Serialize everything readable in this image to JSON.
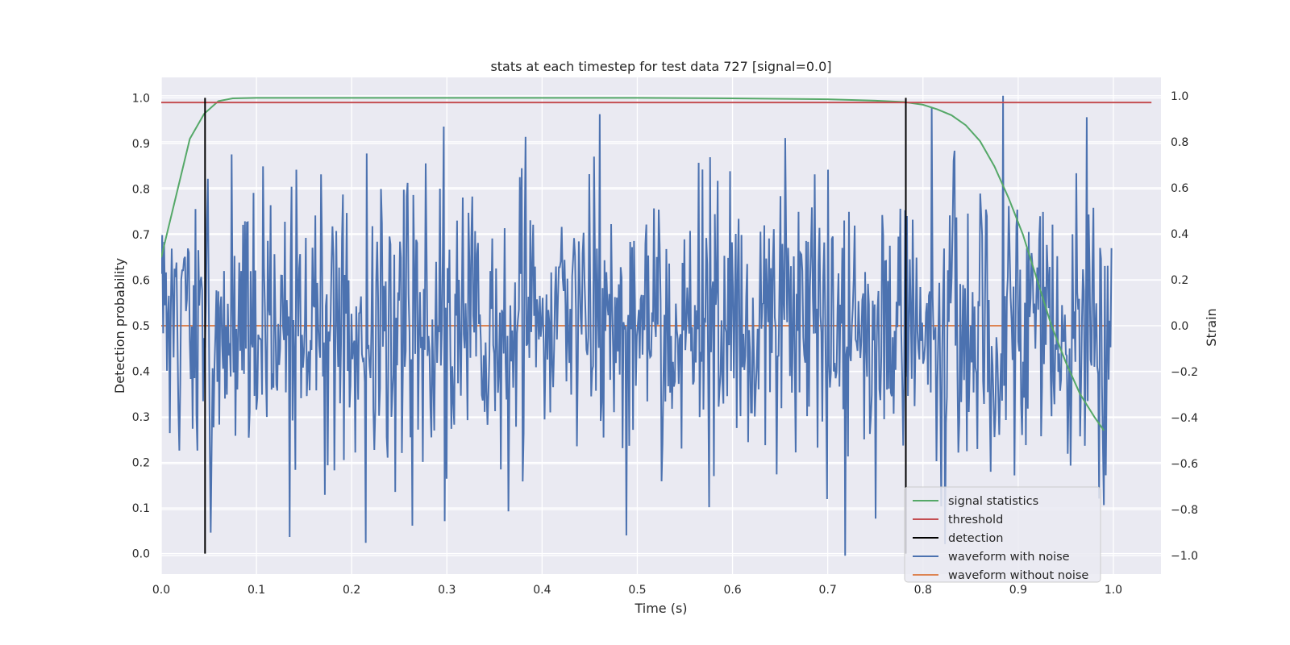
{
  "chart_data": {
    "type": "line",
    "title": "stats at each timestep for test data 727 [signal=0.0]",
    "xlabel": "Time (s)",
    "ylabel_left": "Detection probability",
    "ylabel_right": "Strain",
    "xlim": [
      0.0,
      1.05
    ],
    "ylim_left": [
      -0.045,
      1.045
    ],
    "ylim_right": [
      -1.08,
      1.08
    ],
    "x_ticks": [
      "0.0",
      "0.1",
      "0.2",
      "0.3",
      "0.4",
      "0.5",
      "0.6",
      "0.7",
      "0.8",
      "0.9",
      "1.0"
    ],
    "y_left_ticks": [
      "0.0",
      "0.1",
      "0.2",
      "0.3",
      "0.4",
      "0.5",
      "0.6",
      "0.7",
      "0.8",
      "0.9",
      "1.0"
    ],
    "y_right_ticks": [
      "−1.0",
      "−0.8",
      "−0.6",
      "−0.4",
      "−0.2",
      "0.0",
      "0.2",
      "0.4",
      "0.6",
      "0.8",
      "1.0"
    ],
    "grid": true,
    "legend_position": "lower-right",
    "colors": {
      "background": "#eaeaf2",
      "grid": "#ffffff",
      "signal_statistics": "#55a868",
      "threshold": "#c44e52",
      "detection": "#000000",
      "waveform_with_noise": "#4c72b0",
      "waveform_without_noise": "#dd8452"
    },
    "series": [
      {
        "name": "signal statistics",
        "axis": "left",
        "x": [
          0.0,
          0.015,
          0.03,
          0.045,
          0.06,
          0.075,
          0.1,
          0.2,
          0.3,
          0.4,
          0.5,
          0.6,
          0.7,
          0.75,
          0.78,
          0.8,
          0.815,
          0.83,
          0.845,
          0.86,
          0.875,
          0.89,
          0.905,
          0.92,
          0.935,
          0.95,
          0.965,
          0.98,
          0.99
        ],
        "y": [
          0.65,
          0.78,
          0.91,
          0.965,
          0.993,
          0.999,
          1.0,
          1.0,
          1.0,
          1.0,
          1.0,
          0.999,
          0.997,
          0.994,
          0.991,
          0.985,
          0.975,
          0.962,
          0.94,
          0.905,
          0.85,
          0.78,
          0.7,
          0.6,
          0.5,
          0.42,
          0.35,
          0.3,
          0.27
        ]
      },
      {
        "name": "threshold",
        "axis": "left",
        "x": [
          0.0,
          1.04
        ],
        "y": [
          0.99,
          0.99
        ]
      },
      {
        "name": "detection",
        "axis": "left",
        "segments": [
          {
            "x": 0.046,
            "y0": 0.0,
            "y1": 1.0
          },
          {
            "x": 0.782,
            "y0": 0.0,
            "y1": 1.0
          }
        ]
      },
      {
        "name": "waveform with noise",
        "axis": "right",
        "x_start": 0.0,
        "x_end": 0.998,
        "samples": 1000,
        "seed": 727,
        "std": 0.3,
        "range": [
          -1.0,
          1.0
        ],
        "peaks": [
          {
            "x": 0.884,
            "y": 1.0
          },
          {
            "x": 0.718,
            "y": -1.0
          },
          {
            "x": 0.461,
            "y": 0.92
          },
          {
            "x": 0.052,
            "y": -0.9
          },
          {
            "x": 0.298,
            "y": -0.85
          },
          {
            "x": 0.99,
            "y": -0.78
          }
        ]
      },
      {
        "name": "waveform without noise",
        "axis": "right",
        "x": [
          0.0,
          0.998
        ],
        "y": [
          0.0,
          0.0
        ]
      }
    ]
  }
}
